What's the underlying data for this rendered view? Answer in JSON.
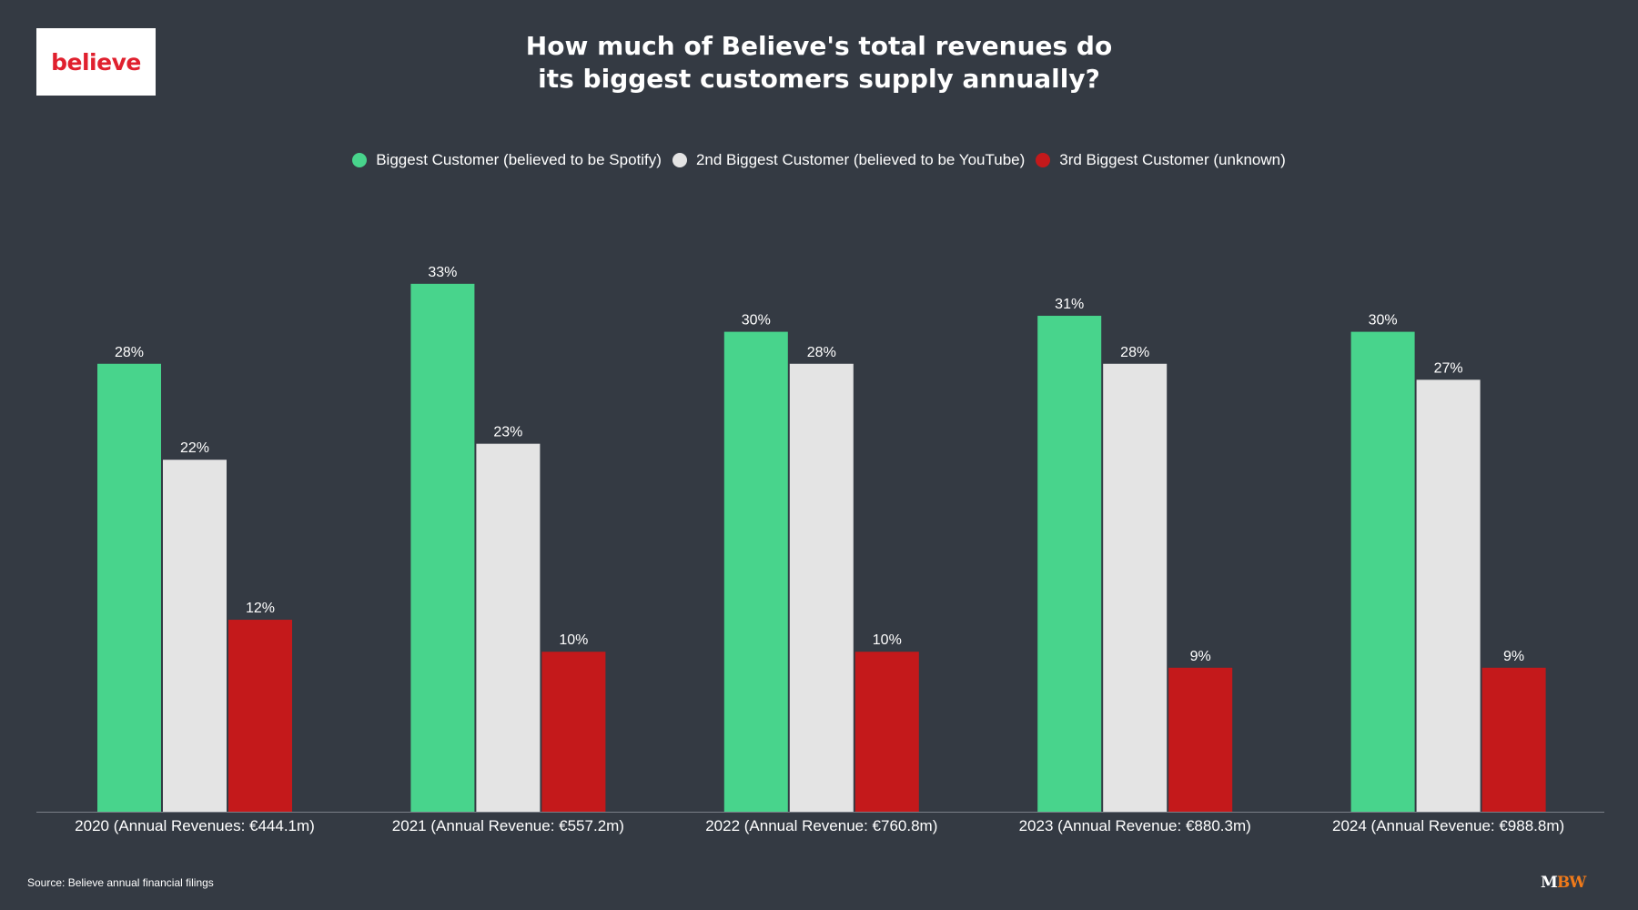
{
  "logo_text": "believe",
  "title_line1": "How much of Believe's total revenues do",
  "title_line2": "its biggest customers supply annually?",
  "source": "Source: Believe annual financial filings",
  "mbw_logo": {
    "m": "M",
    "bw": "BW"
  },
  "chart_data": {
    "type": "bar",
    "title": "How much of Believe's total revenues do its biggest customers supply annually?",
    "categories": [
      "2020 (Annual Revenues: €444.1m)",
      "2021 (Annual Revenue: €557.2m)",
      "2022 (Annual Revenue: €760.8m)",
      "2023 (Annual Revenue: €880.3m)",
      "2024 (Annual Revenue: €988.8m)"
    ],
    "series": [
      {
        "name": "Biggest Customer (believed to be Spotify)",
        "color": "#48d48c",
        "values": [
          28,
          33,
          30,
          31,
          30
        ]
      },
      {
        "name": "2nd Biggest Customer (believed to be YouTube)",
        "color": "#e4e4e4",
        "values": [
          22,
          23,
          28,
          28,
          27
        ]
      },
      {
        "name": "3rd Biggest Customer (unknown)",
        "color": "#c4191b",
        "values": [
          12,
          10,
          10,
          9,
          9
        ]
      }
    ],
    "value_suffix": "%",
    "xlabel": "",
    "ylabel": "",
    "ylim": [
      0,
      33
    ],
    "grid": false,
    "legend": "top-center"
  }
}
